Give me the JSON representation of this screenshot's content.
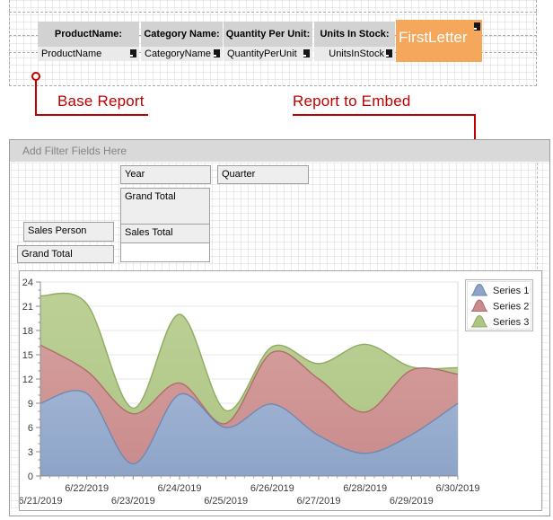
{
  "top_band": {
    "columns": [
      {
        "header": "ProductName:",
        "field": "ProductName"
      },
      {
        "header": "Category Name:",
        "field": "CategoryName"
      },
      {
        "header": "Quantity Per Unit:",
        "field": "QuantityPerUnit"
      },
      {
        "header": "Units In Stock:",
        "field": "UnitsInStock"
      }
    ],
    "formatted_cell_label": "FirstLetter",
    "accent_orange": "#f5a75c"
  },
  "callouts": {
    "base_label": "Base Report",
    "embed_label": "Report to Embed",
    "color": "#bd0000"
  },
  "pivot": {
    "filter_hint": "Add Filter Fields Here",
    "column_field": "Year",
    "column_field2": "Quarter",
    "column_grand_total": "Grand Total",
    "data_field": "Sales Total",
    "row_field": "Sales Person",
    "row_grand_total": "Grand Total"
  },
  "chart_data": {
    "type": "area",
    "x": [
      "6/21/2019",
      "6/22/2019",
      "6/23/2019",
      "6/24/2019",
      "6/25/2019",
      "6/26/2019",
      "6/27/2019",
      "6/28/2019",
      "6/29/2019",
      "6/30/2019"
    ],
    "series": [
      {
        "name": "Series 1",
        "fill": "#8da4c8",
        "fill_light": "#9fb3d3",
        "line": "#6f89b0",
        "values": [
          9.0,
          10.2,
          1.5,
          10.1,
          6.0,
          8.9,
          5.0,
          2.8,
          5.1,
          9.0
        ]
      },
      {
        "name": "Series 2",
        "fill": "#c98b8b",
        "fill_light": "#d49c9c",
        "line": "#b06c6c",
        "values": [
          16.2,
          13.0,
          7.7,
          11.5,
          6.5,
          15.3,
          12.0,
          7.9,
          13.1,
          12.6
        ]
      },
      {
        "name": "Series 3",
        "fill": "#aec584",
        "fill_light": "#bcd096",
        "line": "#8fab61",
        "values": [
          22.3,
          21.3,
          8.4,
          20.0,
          8.1,
          16.0,
          13.9,
          16.3,
          13.5,
          13.4
        ]
      }
    ],
    "draw_order": [
      2,
      1,
      0
    ],
    "ylim": [
      0,
      24
    ],
    "ytick": 3,
    "grid": "horizontal",
    "legend_position": "top-right"
  }
}
